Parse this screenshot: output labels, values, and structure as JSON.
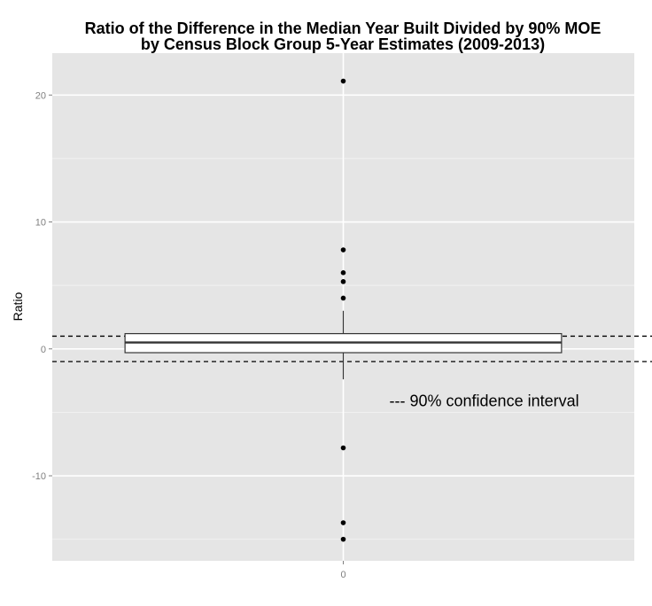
{
  "chart_data": {
    "type": "box",
    "title": [
      "Ratio of the Difference in the Median Year Built Divided by 90% MOE",
      "by Census Block Group 5-Year Estimates (2009-2013)"
    ],
    "xlabel": "",
    "ylabel": "Ratio",
    "categories": [
      "0"
    ],
    "x_tick_labels": [
      "0"
    ],
    "y_tick_labels": [
      "-10",
      "0",
      "10",
      "20"
    ],
    "y_ticks": [
      -10,
      0,
      10,
      20
    ],
    "ylim": [
      -16.7,
      23.3
    ],
    "grid": true,
    "box": {
      "q1": -0.3,
      "median": 0.5,
      "q3": 1.2,
      "whisker_low": -2.4,
      "whisker_high": 3.0
    },
    "outliers": [
      21.1,
      7.8,
      6.0,
      5.3,
      4.0,
      -7.8,
      -13.7,
      -15.0
    ],
    "reference_lines": [
      1,
      -1
    ],
    "annotation": "--- 90% confidence interval",
    "annotation_position": [
      1.4,
      -4.1
    ],
    "colors": {
      "panel": "#e5e5e5",
      "grid_major": "#ffffff",
      "grid_minor": "#f2f2f2",
      "box_stroke": "#333333",
      "points": "#000000"
    }
  }
}
